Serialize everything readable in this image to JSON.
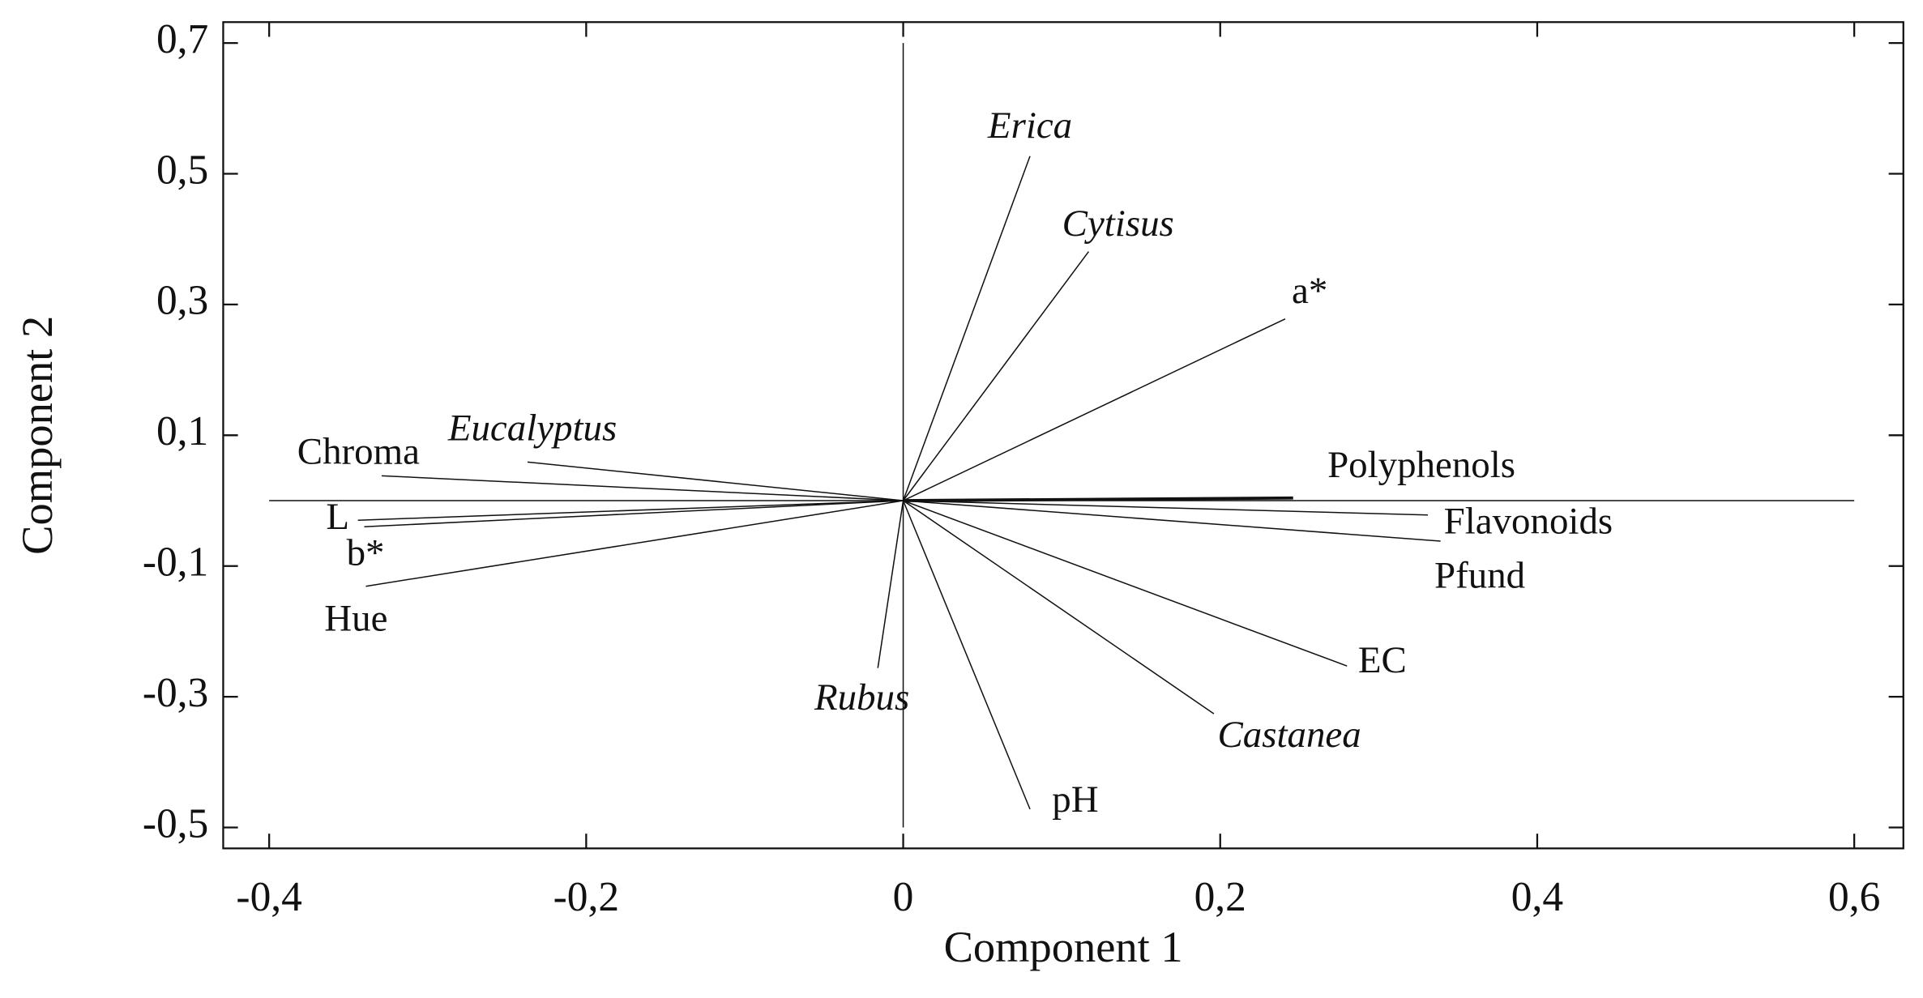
{
  "chart_data": {
    "type": "biplot",
    "xlabel": "Component 1",
    "ylabel": "Component 2",
    "xlim": [
      -0.429,
      0.631
    ],
    "ylim": [
      -0.532,
      0.732
    ],
    "xticks": [
      {
        "value": -0.4,
        "label": "-0,4"
      },
      {
        "value": -0.2,
        "label": "-0,2"
      },
      0,
      {
        "value": 0.2,
        "label": "0,2"
      },
      {
        "value": 0.4,
        "label": "0,4"
      },
      {
        "value": 0.6,
        "label": "0,6"
      }
    ],
    "yticks": [
      {
        "value": -0.5,
        "label": "-0,5"
      },
      {
        "value": -0.3,
        "label": "-0,3"
      },
      {
        "value": -0.1,
        "label": "-0,1"
      },
      {
        "value": 0.1,
        "label": "0,1"
      },
      {
        "value": 0.3,
        "label": "0,3"
      },
      {
        "value": 0.5,
        "label": "0,5"
      },
      {
        "value": 0.7,
        "label": "0,7"
      }
    ],
    "color": "#111111",
    "vectors": [
      {
        "label": "Erica",
        "x": 0.08,
        "y": 0.527,
        "italic": true
      },
      {
        "label": "Cytisus",
        "x": 0.117,
        "y": 0.381,
        "italic": true
      },
      {
        "label": "a*",
        "x": 0.241,
        "y": 0.278,
        "italic": false
      },
      {
        "label": "Polyphenols",
        "x": 0.246,
        "y": 0.004,
        "italic": false
      },
      {
        "label": "Flavonoids",
        "x": 0.331,
        "y": -0.022,
        "italic": false
      },
      {
        "label": "Pfund",
        "x": 0.339,
        "y": -0.062,
        "italic": false
      },
      {
        "label": "EC",
        "x": 0.28,
        "y": -0.253,
        "italic": false
      },
      {
        "label": "Castanea",
        "x": 0.196,
        "y": -0.326,
        "italic": true
      },
      {
        "label": "pH",
        "x": 0.08,
        "y": -0.472,
        "italic": false
      },
      {
        "label": "Rubus",
        "x": -0.016,
        "y": -0.256,
        "italic": true
      },
      {
        "label": "Hue",
        "x": -0.339,
        "y": -0.131,
        "italic": false
      },
      {
        "label": "b*",
        "x": -0.34,
        "y": -0.04,
        "italic": false
      },
      {
        "label": "L",
        "x": -0.344,
        "y": -0.03,
        "italic": false
      },
      {
        "label": "Chroma",
        "x": -0.329,
        "y": 0.038,
        "italic": false
      },
      {
        "label": "Eucalyptus",
        "x": -0.237,
        "y": 0.059,
        "italic": true
      }
    ]
  }
}
